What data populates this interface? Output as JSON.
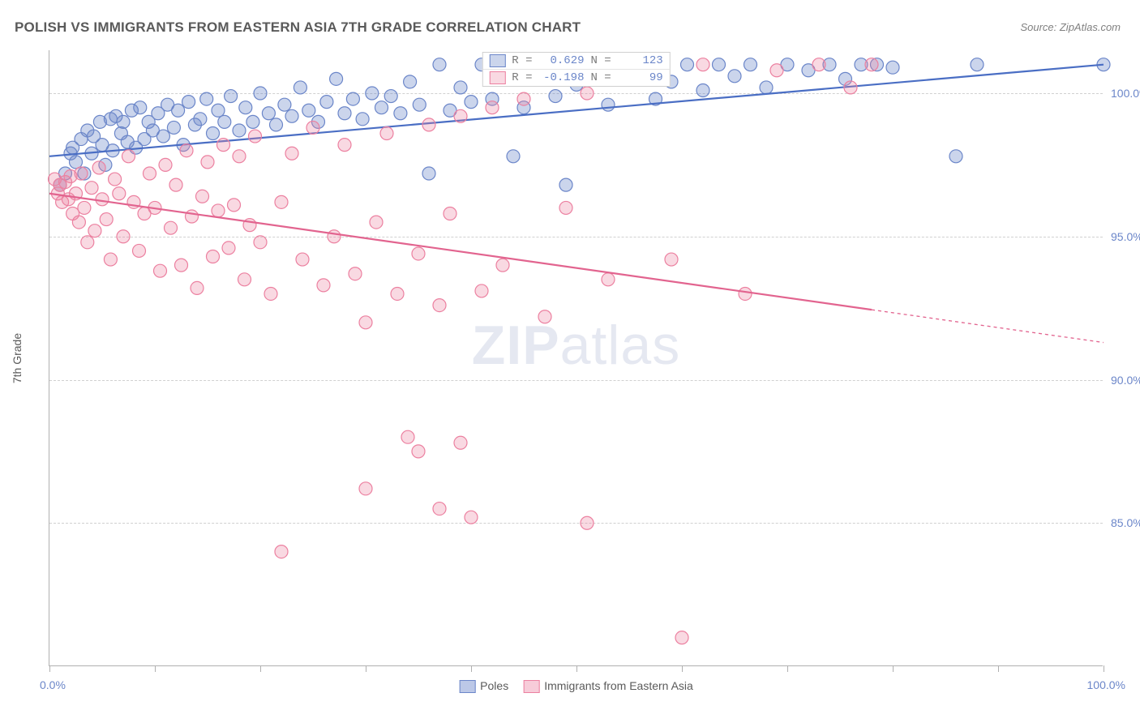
{
  "title": "POLISH VS IMMIGRANTS FROM EASTERN ASIA 7TH GRADE CORRELATION CHART",
  "source": "Source: ZipAtlas.com",
  "watermark": {
    "part1": "ZIP",
    "part2": "atlas"
  },
  "yaxis_title": "7th Grade",
  "chart": {
    "type": "scatter",
    "xlim": [
      0,
      100
    ],
    "ylim": [
      80,
      101.5
    ],
    "background_color": "#ffffff",
    "grid_color": "#d0d0d0",
    "axis_color": "#b0b0b0",
    "tick_color": "#6b86c9",
    "yticks": [
      85.0,
      90.0,
      95.0,
      100.0
    ],
    "ytick_labels": [
      "85.0%",
      "90.0%",
      "95.0%",
      "100.0%"
    ],
    "xticks": [
      0,
      10,
      20,
      30,
      40,
      50,
      60,
      70,
      80,
      90,
      100
    ],
    "x0_label": "0.0%",
    "x100_label": "100.0%",
    "marker_radius": 8,
    "marker_stroke_width": 1.2,
    "line_width": 2.2,
    "series": [
      {
        "name": "Poles",
        "fill": "rgba(107,134,201,0.35)",
        "stroke": "#6b86c9",
        "line_color": "#4a6ec4",
        "R": "0.629",
        "N": "123",
        "regression": {
          "x1": 0,
          "y1": 97.8,
          "x2": 100,
          "y2": 101.0,
          "dash_from_x": null
        },
        "points": [
          [
            1,
            96.8
          ],
          [
            1.5,
            97.2
          ],
          [
            2,
            97.9
          ],
          [
            2.2,
            98.1
          ],
          [
            2.5,
            97.6
          ],
          [
            3,
            98.4
          ],
          [
            3.3,
            97.2
          ],
          [
            3.6,
            98.7
          ],
          [
            4,
            97.9
          ],
          [
            4.2,
            98.5
          ],
          [
            4.8,
            99.0
          ],
          [
            5,
            98.2
          ],
          [
            5.3,
            97.5
          ],
          [
            5.8,
            99.1
          ],
          [
            6,
            98.0
          ],
          [
            6.3,
            99.2
          ],
          [
            6.8,
            98.6
          ],
          [
            7,
            99.0
          ],
          [
            7.4,
            98.3
          ],
          [
            7.8,
            99.4
          ],
          [
            8.2,
            98.1
          ],
          [
            8.6,
            99.5
          ],
          [
            9,
            98.4
          ],
          [
            9.4,
            99.0
          ],
          [
            9.8,
            98.7
          ],
          [
            10.3,
            99.3
          ],
          [
            10.8,
            98.5
          ],
          [
            11.2,
            99.6
          ],
          [
            11.8,
            98.8
          ],
          [
            12.2,
            99.4
          ],
          [
            12.7,
            98.2
          ],
          [
            13.2,
            99.7
          ],
          [
            13.8,
            98.9
          ],
          [
            14.3,
            99.1
          ],
          [
            14.9,
            99.8
          ],
          [
            15.5,
            98.6
          ],
          [
            16,
            99.4
          ],
          [
            16.6,
            99.0
          ],
          [
            17.2,
            99.9
          ],
          [
            18,
            98.7
          ],
          [
            18.6,
            99.5
          ],
          [
            19.3,
            99.0
          ],
          [
            20,
            100.0
          ],
          [
            20.8,
            99.3
          ],
          [
            21.5,
            98.9
          ],
          [
            22.3,
            99.6
          ],
          [
            23,
            99.2
          ],
          [
            23.8,
            100.2
          ],
          [
            24.6,
            99.4
          ],
          [
            25.5,
            99.0
          ],
          [
            26.3,
            99.7
          ],
          [
            27.2,
            100.5
          ],
          [
            28,
            99.3
          ],
          [
            28.8,
            99.8
          ],
          [
            29.7,
            99.1
          ],
          [
            30.6,
            100.0
          ],
          [
            31.5,
            99.5
          ],
          [
            32.4,
            99.9
          ],
          [
            33.3,
            99.3
          ],
          [
            34.2,
            100.4
          ],
          [
            35.1,
            99.6
          ],
          [
            36,
            97.2
          ],
          [
            37,
            101.0
          ],
          [
            38,
            99.4
          ],
          [
            39,
            100.2
          ],
          [
            40,
            99.7
          ],
          [
            41,
            101.0
          ],
          [
            42,
            99.8
          ],
          [
            43,
            100.5
          ],
          [
            44,
            97.8
          ],
          [
            45,
            99.5
          ],
          [
            46.5,
            101.0
          ],
          [
            48,
            99.9
          ],
          [
            49,
            96.8
          ],
          [
            50,
            100.3
          ],
          [
            51.5,
            101.0
          ],
          [
            53,
            99.6
          ],
          [
            54.5,
            100.7
          ],
          [
            56,
            101.0
          ],
          [
            57.5,
            99.8
          ],
          [
            59,
            100.4
          ],
          [
            60.5,
            101.0
          ],
          [
            62,
            100.1
          ],
          [
            63.5,
            101.0
          ],
          [
            65,
            100.6
          ],
          [
            66.5,
            101.0
          ],
          [
            68,
            100.2
          ],
          [
            70,
            101.0
          ],
          [
            72,
            100.8
          ],
          [
            74,
            101.0
          ],
          [
            75.5,
            100.5
          ],
          [
            77,
            101.0
          ],
          [
            78.5,
            101.0
          ],
          [
            80,
            100.9
          ],
          [
            86,
            97.8
          ],
          [
            88,
            101.0
          ],
          [
            100,
            101.0
          ]
        ]
      },
      {
        "name": "Immigrants from Eastern Asia",
        "fill": "rgba(236,128,160,0.30)",
        "stroke": "#ec80a0",
        "line_color": "#e2648f",
        "R": "-0.198",
        "N": "99",
        "regression": {
          "x1": 0,
          "y1": 96.5,
          "x2": 100,
          "y2": 91.3,
          "dash_from_x": 78
        },
        "points": [
          [
            0.5,
            97.0
          ],
          [
            0.8,
            96.5
          ],
          [
            1,
            96.8
          ],
          [
            1.2,
            96.2
          ],
          [
            1.5,
            96.9
          ],
          [
            1.8,
            96.3
          ],
          [
            2,
            97.1
          ],
          [
            2.2,
            95.8
          ],
          [
            2.5,
            96.5
          ],
          [
            2.8,
            95.5
          ],
          [
            3,
            97.2
          ],
          [
            3.3,
            96.0
          ],
          [
            3.6,
            94.8
          ],
          [
            4,
            96.7
          ],
          [
            4.3,
            95.2
          ],
          [
            4.7,
            97.4
          ],
          [
            5,
            96.3
          ],
          [
            5.4,
            95.6
          ],
          [
            5.8,
            94.2
          ],
          [
            6.2,
            97.0
          ],
          [
            6.6,
            96.5
          ],
          [
            7,
            95.0
          ],
          [
            7.5,
            97.8
          ],
          [
            8,
            96.2
          ],
          [
            8.5,
            94.5
          ],
          [
            9,
            95.8
          ],
          [
            9.5,
            97.2
          ],
          [
            10,
            96.0
          ],
          [
            10.5,
            93.8
          ],
          [
            11,
            97.5
          ],
          [
            11.5,
            95.3
          ],
          [
            12,
            96.8
          ],
          [
            12.5,
            94.0
          ],
          [
            13,
            98.0
          ],
          [
            13.5,
            95.7
          ],
          [
            14,
            93.2
          ],
          [
            14.5,
            96.4
          ],
          [
            15,
            97.6
          ],
          [
            15.5,
            94.3
          ],
          [
            16,
            95.9
          ],
          [
            16.5,
            98.2
          ],
          [
            17,
            94.6
          ],
          [
            17.5,
            96.1
          ],
          [
            18,
            97.8
          ],
          [
            18.5,
            93.5
          ],
          [
            19,
            95.4
          ],
          [
            19.5,
            98.5
          ],
          [
            20,
            94.8
          ],
          [
            21,
            93.0
          ],
          [
            22,
            96.2
          ],
          [
            22,
            84.0
          ],
          [
            23,
            97.9
          ],
          [
            24,
            94.2
          ],
          [
            25,
            98.8
          ],
          [
            26,
            93.3
          ],
          [
            27,
            95.0
          ],
          [
            28,
            98.2
          ],
          [
            29,
            93.7
          ],
          [
            30,
            86.2
          ],
          [
            30,
            92.0
          ],
          [
            31,
            95.5
          ],
          [
            32,
            98.6
          ],
          [
            33,
            93.0
          ],
          [
            34,
            88.0
          ],
          [
            35,
            87.5
          ],
          [
            35,
            94.4
          ],
          [
            36,
            98.9
          ],
          [
            37,
            92.6
          ],
          [
            37,
            85.5
          ],
          [
            38,
            95.8
          ],
          [
            39,
            99.2
          ],
          [
            39,
            87.8
          ],
          [
            40,
            85.2
          ],
          [
            41,
            93.1
          ],
          [
            42,
            99.5
          ],
          [
            43,
            94.0
          ],
          [
            45,
            99.8
          ],
          [
            47,
            92.2
          ],
          [
            49,
            96.0
          ],
          [
            51,
            100.0
          ],
          [
            51,
            85.0
          ],
          [
            53,
            93.5
          ],
          [
            56,
            100.5
          ],
          [
            59,
            94.2
          ],
          [
            60,
            81.0
          ],
          [
            62,
            101.0
          ],
          [
            66,
            93.0
          ],
          [
            69,
            100.8
          ],
          [
            73,
            101.0
          ],
          [
            76,
            100.2
          ],
          [
            78,
            101.0
          ]
        ]
      }
    ],
    "legend_bottom": [
      {
        "label": "Poles",
        "fill": "rgba(107,134,201,0.45)",
        "stroke": "#6b86c9"
      },
      {
        "label": "Immigrants from Eastern Asia",
        "fill": "rgba(236,128,160,0.40)",
        "stroke": "#ec80a0"
      }
    ],
    "legend_top_labels": {
      "R": "R =",
      "N": "N ="
    }
  }
}
